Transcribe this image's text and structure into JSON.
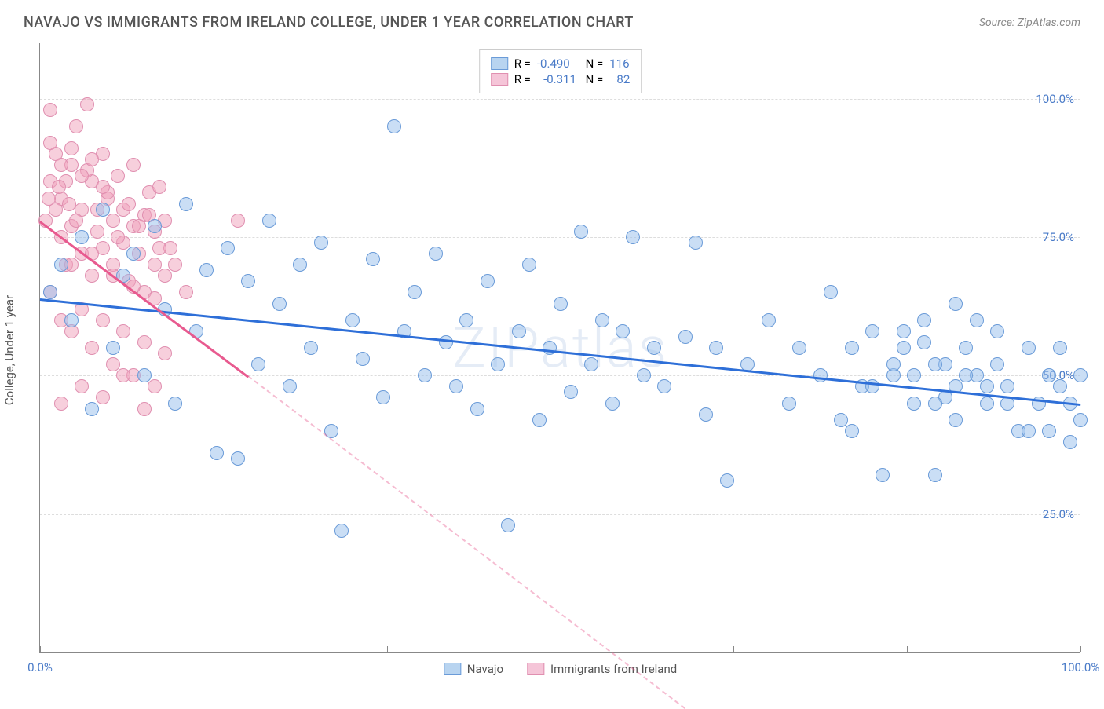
{
  "header": {
    "title": "NAVAJO VS IMMIGRANTS FROM IRELAND COLLEGE, UNDER 1 YEAR CORRELATION CHART",
    "source": "Source: ZipAtlas.com"
  },
  "watermark": "ZIPatlas",
  "chart": {
    "type": "scatter",
    "ylabel": "College, Under 1 year",
    "xlim": [
      0,
      100
    ],
    "ylim": [
      0,
      110
    ],
    "yticks": [
      25.0,
      50.0,
      75.0,
      100.0
    ],
    "ytick_labels": [
      "25.0%",
      "50.0%",
      "75.0%",
      "100.0%"
    ],
    "xtick_marks": [
      0,
      16.67,
      33.33,
      50,
      66.67,
      83.33,
      100
    ],
    "xtick_labels": {
      "0": "0.0%",
      "100": "100.0%"
    },
    "grid_color": "#dddddd",
    "background_color": "#ffffff",
    "axis_color": "#888888",
    "tick_label_color": "#4a7bc8",
    "series": {
      "navajo": {
        "label": "Navajo",
        "R": "-0.490",
        "N": "116",
        "marker_fill": "rgba(150, 190, 235, 0.5)",
        "marker_stroke": "#6a9bd8",
        "marker_radius": 9,
        "trend_color": "#2e6fd8",
        "trend_start": [
          0,
          64
        ],
        "trend_end": [
          100,
          45
        ],
        "trend_dash_after": 100,
        "legend_swatch_fill": "#b8d4f0",
        "legend_swatch_border": "#6a9bd8",
        "points": [
          [
            1,
            65
          ],
          [
            2,
            70
          ],
          [
            3,
            60
          ],
          [
            4,
            75
          ],
          [
            5,
            44
          ],
          [
            6,
            80
          ],
          [
            7,
            55
          ],
          [
            8,
            68
          ],
          [
            9,
            72
          ],
          [
            10,
            50
          ],
          [
            11,
            77
          ],
          [
            12,
            62
          ],
          [
            13,
            45
          ],
          [
            14,
            81
          ],
          [
            15,
            58
          ],
          [
            16,
            69
          ],
          [
            17,
            36
          ],
          [
            18,
            73
          ],
          [
            19,
            35
          ],
          [
            20,
            67
          ],
          [
            21,
            52
          ],
          [
            22,
            78
          ],
          [
            23,
            63
          ],
          [
            24,
            48
          ],
          [
            25,
            70
          ],
          [
            26,
            55
          ],
          [
            27,
            74
          ],
          [
            28,
            40
          ],
          [
            29,
            22
          ],
          [
            30,
            60
          ],
          [
            31,
            53
          ],
          [
            32,
            71
          ],
          [
            33,
            46
          ],
          [
            34,
            95
          ],
          [
            35,
            58
          ],
          [
            36,
            65
          ],
          [
            37,
            50
          ],
          [
            38,
            72
          ],
          [
            39,
            56
          ],
          [
            40,
            48
          ],
          [
            41,
            60
          ],
          [
            42,
            44
          ],
          [
            43,
            67
          ],
          [
            44,
            52
          ],
          [
            45,
            23
          ],
          [
            46,
            58
          ],
          [
            47,
            70
          ],
          [
            48,
            42
          ],
          [
            49,
            55
          ],
          [
            50,
            63
          ],
          [
            51,
            47
          ],
          [
            52,
            76
          ],
          [
            53,
            52
          ],
          [
            54,
            60
          ],
          [
            55,
            45
          ],
          [
            56,
            58
          ],
          [
            57,
            75
          ],
          [
            58,
            50
          ],
          [
            59,
            55
          ],
          [
            60,
            48
          ],
          [
            62,
            57
          ],
          [
            63,
            74
          ],
          [
            64,
            43
          ],
          [
            65,
            55
          ],
          [
            66,
            31
          ],
          [
            68,
            52
          ],
          [
            70,
            60
          ],
          [
            72,
            45
          ],
          [
            73,
            55
          ],
          [
            75,
            50
          ],
          [
            76,
            65
          ],
          [
            77,
            42
          ],
          [
            78,
            55
          ],
          [
            79,
            48
          ],
          [
            80,
            58
          ],
          [
            81,
            32
          ],
          [
            82,
            50
          ],
          [
            83,
            55
          ],
          [
            84,
            45
          ],
          [
            85,
            60
          ],
          [
            86,
            32
          ],
          [
            87,
            52
          ],
          [
            88,
            48
          ],
          [
            89,
            55
          ],
          [
            90,
            50
          ],
          [
            91,
            45
          ],
          [
            92,
            58
          ],
          [
            93,
            48
          ],
          [
            94,
            40
          ],
          [
            95,
            55
          ],
          [
            96,
            45
          ],
          [
            97,
            50
          ],
          [
            97,
            40
          ],
          [
            98,
            48
          ],
          [
            98,
            55
          ],
          [
            99,
            45
          ],
          [
            99,
            38
          ],
          [
            100,
            50
          ],
          [
            100,
            42
          ],
          [
            88,
            63
          ],
          [
            90,
            60
          ],
          [
            85,
            56
          ],
          [
            92,
            52
          ],
          [
            87,
            46
          ],
          [
            89,
            50
          ],
          [
            91,
            48
          ],
          [
            86,
            52
          ],
          [
            93,
            45
          ],
          [
            95,
            40
          ],
          [
            83,
            58
          ],
          [
            78,
            40
          ],
          [
            80,
            48
          ],
          [
            82,
            52
          ],
          [
            84,
            50
          ],
          [
            86,
            45
          ],
          [
            88,
            42
          ]
        ]
      },
      "ireland": {
        "label": "Immigrants from Ireland",
        "R": "-0.311",
        "N": "82",
        "marker_fill": "rgba(240, 160, 185, 0.5)",
        "marker_stroke": "#e08fb0",
        "marker_radius": 9,
        "trend_color": "#e85a8f",
        "trend_start": [
          0,
          78
        ],
        "trend_end": [
          20,
          50
        ],
        "trend_dash_after": 20,
        "trend_dash_end": [
          62,
          -10
        ],
        "legend_swatch_fill": "#f5c5d8",
        "legend_swatch_border": "#e08fb0",
        "points": [
          [
            0.5,
            78
          ],
          [
            1,
            98
          ],
          [
            1,
            85
          ],
          [
            1.5,
            90
          ],
          [
            2,
            75
          ],
          [
            2,
            82
          ],
          [
            2.5,
            70
          ],
          [
            3,
            88
          ],
          [
            3,
            77
          ],
          [
            3.5,
            95
          ],
          [
            4,
            72
          ],
          [
            4,
            80
          ],
          [
            4.5,
            99
          ],
          [
            5,
            68
          ],
          [
            5,
            85
          ],
          [
            5.5,
            76
          ],
          [
            6,
            90
          ],
          [
            6,
            73
          ],
          [
            6.5,
            82
          ],
          [
            7,
            78
          ],
          [
            7,
            70
          ],
          [
            7.5,
            86
          ],
          [
            8,
            74
          ],
          [
            8,
            80
          ],
          [
            8.5,
            67
          ],
          [
            9,
            77
          ],
          [
            9,
            88
          ],
          [
            9.5,
            72
          ],
          [
            10,
            79
          ],
          [
            10,
            65
          ],
          [
            10.5,
            83
          ],
          [
            11,
            76
          ],
          [
            11,
            70
          ],
          [
            11.5,
            84
          ],
          [
            12,
            68
          ],
          [
            12,
            78
          ],
          [
            12.5,
            73
          ],
          [
            1,
            65
          ],
          [
            2,
            60
          ],
          [
            3,
            58
          ],
          [
            4,
            62
          ],
          [
            5,
            55
          ],
          [
            6,
            60
          ],
          [
            7,
            52
          ],
          [
            8,
            58
          ],
          [
            9,
            50
          ],
          [
            10,
            56
          ],
          [
            11,
            48
          ],
          [
            12,
            54
          ],
          [
            2,
            45
          ],
          [
            4,
            48
          ],
          [
            6,
            46
          ],
          [
            8,
            50
          ],
          [
            10,
            44
          ],
          [
            3,
            70
          ],
          [
            5,
            72
          ],
          [
            7,
            68
          ],
          [
            9,
            66
          ],
          [
            11,
            64
          ],
          [
            1.5,
            80
          ],
          [
            3.5,
            78
          ],
          [
            5.5,
            80
          ],
          [
            7.5,
            75
          ],
          [
            9.5,
            77
          ],
          [
            11.5,
            73
          ],
          [
            2.5,
            85
          ],
          [
            4.5,
            87
          ],
          [
            6.5,
            83
          ],
          [
            8.5,
            81
          ],
          [
            10.5,
            79
          ],
          [
            1,
            92
          ],
          [
            3,
            91
          ],
          [
            5,
            89
          ],
          [
            2,
            88
          ],
          [
            4,
            86
          ],
          [
            6,
            84
          ],
          [
            0.8,
            82
          ],
          [
            1.8,
            84
          ],
          [
            2.8,
            81
          ],
          [
            13,
            70
          ],
          [
            14,
            65
          ],
          [
            19,
            78
          ]
        ]
      }
    },
    "legend_top": {
      "label_color": "#555",
      "value_color": "#4a7bc8"
    }
  }
}
